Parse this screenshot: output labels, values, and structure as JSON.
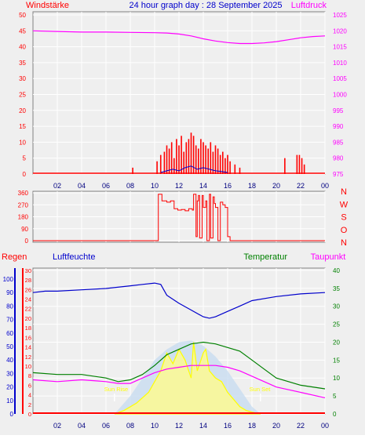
{
  "header": {
    "left": "Windstärke",
    "center": "24 hour graph day : 28 September 2025",
    "right": "Luftdruck"
  },
  "colors": {
    "red": "#ff0000",
    "blue": "#0000cc",
    "magenta": "#ff00ff",
    "green": "#008000",
    "yellow": "#ffff00",
    "light_blue": "#c8dcf0",
    "grid": "#ffffff"
  },
  "x_axis": {
    "tick_labels": [
      "02",
      "04",
      "06",
      "08",
      "10",
      "12",
      "14",
      "16",
      "18",
      "20",
      "22",
      "00"
    ]
  },
  "chart_data": [
    {
      "type": "line",
      "title": "24 hour graph day : 28 September 2025",
      "left_axis_label": "Windstärke",
      "right_axis_label": "Luftdruck",
      "left_ticks": [
        "0",
        "5",
        "10",
        "15",
        "20",
        "25",
        "30",
        "35",
        "40",
        "45",
        "50"
      ],
      "right_ticks": [
        "975",
        "980",
        "985",
        "990",
        "995",
        "1000",
        "1005",
        "1010",
        "1015",
        "1020",
        "1025"
      ],
      "ylim_left": [
        0,
        50
      ],
      "ylim_right": [
        975,
        1025
      ],
      "pressure": {
        "x": [
          0,
          2,
          4,
          6,
          8,
          10,
          11,
          12,
          13,
          14,
          15,
          16,
          17,
          18,
          19,
          20,
          21,
          22,
          23,
          24
        ],
        "y": [
          1020,
          1019.8,
          1019.6,
          1019.6,
          1019.5,
          1019.4,
          1019.3,
          1019.0,
          1018.4,
          1017.5,
          1016.8,
          1016.3,
          1016.0,
          1016.0,
          1016.2,
          1016.6,
          1017.2,
          1017.8,
          1018.2,
          1018.4
        ]
      },
      "wind_gust": {
        "x": [
          8.2,
          10.2,
          10.5,
          10.8,
          11.0,
          11.2,
          11.4,
          11.6,
          11.8,
          12.0,
          12.2,
          12.4,
          12.6,
          12.8,
          13.0,
          13.2,
          13.4,
          13.6,
          13.8,
          14.0,
          14.2,
          14.4,
          14.6,
          14.8,
          15.0,
          15.2,
          15.4,
          15.6,
          15.8,
          16.0,
          16.2,
          16.6,
          17.0,
          20.7,
          21.7,
          21.9,
          22.1,
          22.3
        ],
        "y": [
          2,
          4,
          6,
          7,
          9,
          8,
          10,
          5,
          11,
          9,
          12,
          7,
          10,
          11,
          13,
          12,
          9,
          8,
          11,
          10,
          9,
          8,
          10,
          7,
          9,
          8,
          6,
          7,
          5,
          6,
          4,
          3,
          2,
          5,
          6,
          6,
          5,
          3
        ]
      },
      "wind_avg": {
        "x": [
          10.5,
          11,
          11.5,
          12,
          12.5,
          13,
          13.5,
          14,
          14.5,
          15,
          15.5,
          16
        ],
        "y": [
          0.5,
          1,
          1.5,
          1,
          2,
          2.5,
          1.5,
          2,
          1.5,
          1,
          0.8,
          0.5
        ]
      }
    },
    {
      "type": "line",
      "direction_labels": [
        "N",
        "W",
        "S",
        "O",
        "N"
      ],
      "left_ticks": [
        "0",
        "90",
        "180",
        "270",
        "360"
      ],
      "ylim": [
        0,
        360
      ],
      "x": [
        0,
        10.2,
        10.3,
        10.6,
        11.0,
        11.3,
        11.6,
        11.9,
        12.2,
        12.5,
        12.8,
        13.1,
        13.2,
        13.4,
        13.5,
        13.6,
        13.7,
        13.9,
        14.0,
        14.2,
        14.3,
        14.5,
        14.6,
        14.8,
        14.9,
        15.0,
        15.2,
        15.4,
        15.6,
        15.8,
        16.0,
        16.2,
        24
      ],
      "y": [
        0,
        0,
        350,
        300,
        290,
        300,
        240,
        230,
        235,
        225,
        240,
        230,
        350,
        30,
        300,
        340,
        20,
        340,
        250,
        300,
        0,
        350,
        20,
        330,
        280,
        250,
        0,
        290,
        270,
        250,
        30,
        0,
        0
      ]
    },
    {
      "type": "line",
      "left_axis_label": "Regen",
      "left2_axis_label": "Luftfeuchte",
      "right_axis_label": "Temperatur",
      "right2_axis_label": "Taupunkt",
      "humidity_ticks": [
        "0",
        "10",
        "20",
        "30",
        "40",
        "50",
        "60",
        "70",
        "80",
        "90",
        "100"
      ],
      "rain_ticks": [
        "0",
        "2",
        "4",
        "6",
        "8",
        "10",
        "12",
        "14",
        "16",
        "18",
        "20",
        "22",
        "24",
        "26",
        "28",
        "30"
      ],
      "temp_ticks": [
        "0",
        "5",
        "10",
        "15",
        "20",
        "25",
        "30",
        "35",
        "40"
      ],
      "annotations": {
        "sun_rise": "Sun Rise",
        "sun_set": "Sun Set"
      },
      "humidity": {
        "x": [
          0,
          1,
          2,
          4,
          6,
          8,
          9,
          10,
          10.5,
          11,
          12,
          13,
          14,
          14.5,
          15,
          16,
          17,
          18,
          20,
          22,
          24
        ],
        "y": [
          90,
          91,
          91,
          92,
          93,
          95,
          96,
          97,
          96,
          88,
          82,
          77,
          72,
          71,
          72,
          76,
          80,
          84,
          87,
          89,
          90
        ]
      },
      "temperature": {
        "x": [
          0,
          2,
          4,
          6,
          7,
          8,
          9,
          10,
          11,
          12,
          13,
          14,
          15,
          16,
          17,
          18,
          19,
          20,
          22,
          24
        ],
        "y": [
          11.5,
          11,
          11,
          10,
          9,
          9.5,
          11,
          13.5,
          16.5,
          18,
          19.5,
          20,
          19.5,
          18.5,
          17.5,
          15,
          12.5,
          10,
          8,
          7
        ]
      },
      "dewpoint": {
        "x": [
          0,
          2,
          4,
          6,
          7,
          8,
          9,
          10,
          11,
          12,
          13,
          14,
          15,
          16,
          17,
          18,
          19,
          20,
          22,
          24
        ],
        "y": [
          9.5,
          9,
          9.5,
          9,
          8.5,
          8.5,
          10,
          11.5,
          12.5,
          13,
          13.5,
          13.5,
          13.5,
          13,
          12,
          10.5,
          9,
          7.5,
          6,
          4.5
        ]
      },
      "solar": {
        "x": [
          6.7,
          7.5,
          8.5,
          9.5,
          10,
          10.5,
          11,
          11.5,
          12,
          12.5,
          13,
          13.2,
          13.5,
          14,
          14.2,
          14.5,
          15,
          15.5,
          16,
          16.5,
          17,
          17.5,
          18,
          18.7
        ],
        "y": [
          0,
          1,
          3,
          6,
          9,
          12,
          17,
          14,
          18,
          15,
          10,
          20,
          12,
          17,
          18,
          12,
          10,
          9,
          6,
          4,
          2,
          1,
          0.5,
          0
        ]
      },
      "solar_max": {
        "x": [
          6.7,
          8,
          9,
          10,
          11,
          12,
          13,
          14,
          15,
          16,
          17,
          18,
          18.7
        ],
        "y": [
          0,
          5,
          10,
          15,
          18,
          20,
          20.5,
          19,
          16,
          12,
          7,
          2,
          0
        ]
      },
      "rain": {
        "x": [
          0,
          24
        ],
        "y": [
          0,
          0
        ]
      }
    }
  ]
}
